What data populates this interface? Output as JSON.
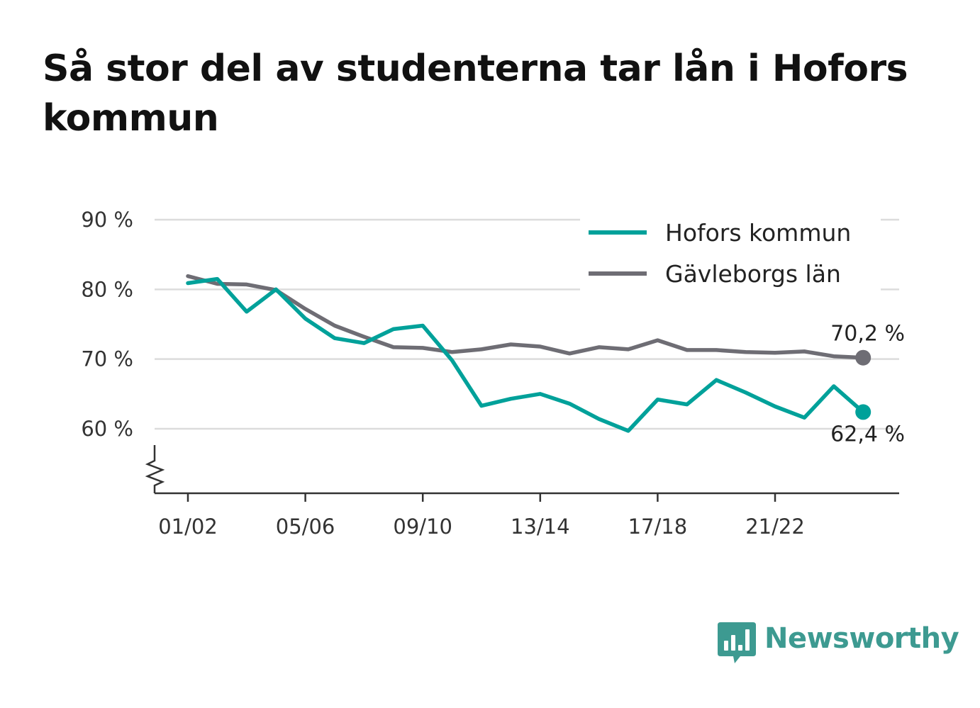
{
  "title": "Så stor del av studenterna tar lån i Hofors kommun",
  "brand": {
    "name": "Newsworthy",
    "icon": "bar-chart-bubble-icon",
    "color": "#3d9a91"
  },
  "chart_data": {
    "type": "line",
    "title": "Så stor del av studenterna tar lån i Hofors kommun",
    "x_tick_labels": [
      "01/02",
      "05/06",
      "09/10",
      "13/14",
      "17/18",
      "21/22"
    ],
    "x_tick_index": [
      0,
      4,
      8,
      12,
      16,
      20
    ],
    "y_ticks": [
      60,
      70,
      80,
      90
    ],
    "y_tick_labels": [
      "60 %",
      "70 %",
      "80 %",
      "90 %"
    ],
    "ylim": [
      50.7,
      90
    ],
    "y_axis_break": true,
    "grid": true,
    "legend_position": "top-right",
    "series": [
      {
        "name": "Hofors kommun",
        "color": "#00a19a",
        "values": [
          80.9,
          81.5,
          76.8,
          80.0,
          75.8,
          73.0,
          72.3,
          74.3,
          74.8,
          69.8,
          63.3,
          64.3,
          65.0,
          63.6,
          61.4,
          59.7,
          64.2,
          63.5,
          67.0,
          65.2,
          63.2,
          61.6,
          66.1,
          62.4
        ],
        "end_label": "62,4 %"
      },
      {
        "name": "Gävleborgs län",
        "color": "#6e6d74",
        "values": [
          81.9,
          80.8,
          80.7,
          79.9,
          77.2,
          74.8,
          73.2,
          71.7,
          71.6,
          71.0,
          71.4,
          72.1,
          71.8,
          70.8,
          71.7,
          71.4,
          72.7,
          71.3,
          71.3,
          71.0,
          70.9,
          71.1,
          70.4,
          70.2
        ],
        "end_label": "70,2 %"
      }
    ]
  }
}
